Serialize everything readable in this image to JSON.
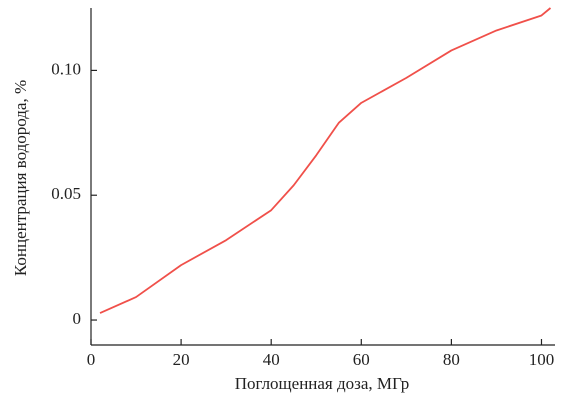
{
  "chart_data": {
    "type": "line",
    "xlabel": "Поглощенная доза, МГр",
    "ylabel": "Концентрация водорода, %",
    "x": [
      2,
      10,
      20,
      30,
      40,
      45,
      50,
      55,
      60,
      70,
      80,
      90,
      100,
      102
    ],
    "series": [
      {
        "color": "#f0504a",
        "values": [
          0.0028,
          0.0092,
          0.022,
          0.032,
          0.044,
          0.054,
          0.066,
          0.079,
          0.087,
          0.097,
          0.108,
          0.116,
          0.122,
          0.125
        ]
      }
    ],
    "xlim": [
      0,
      103
    ],
    "xticks": [
      0,
      20,
      40,
      60,
      80,
      100
    ],
    "ylim": [
      -0.01,
      0.125
    ],
    "yticks": [
      0,
      0.05,
      {
        "value": 0.1,
        "label": "0.10"
      }
    ]
  }
}
